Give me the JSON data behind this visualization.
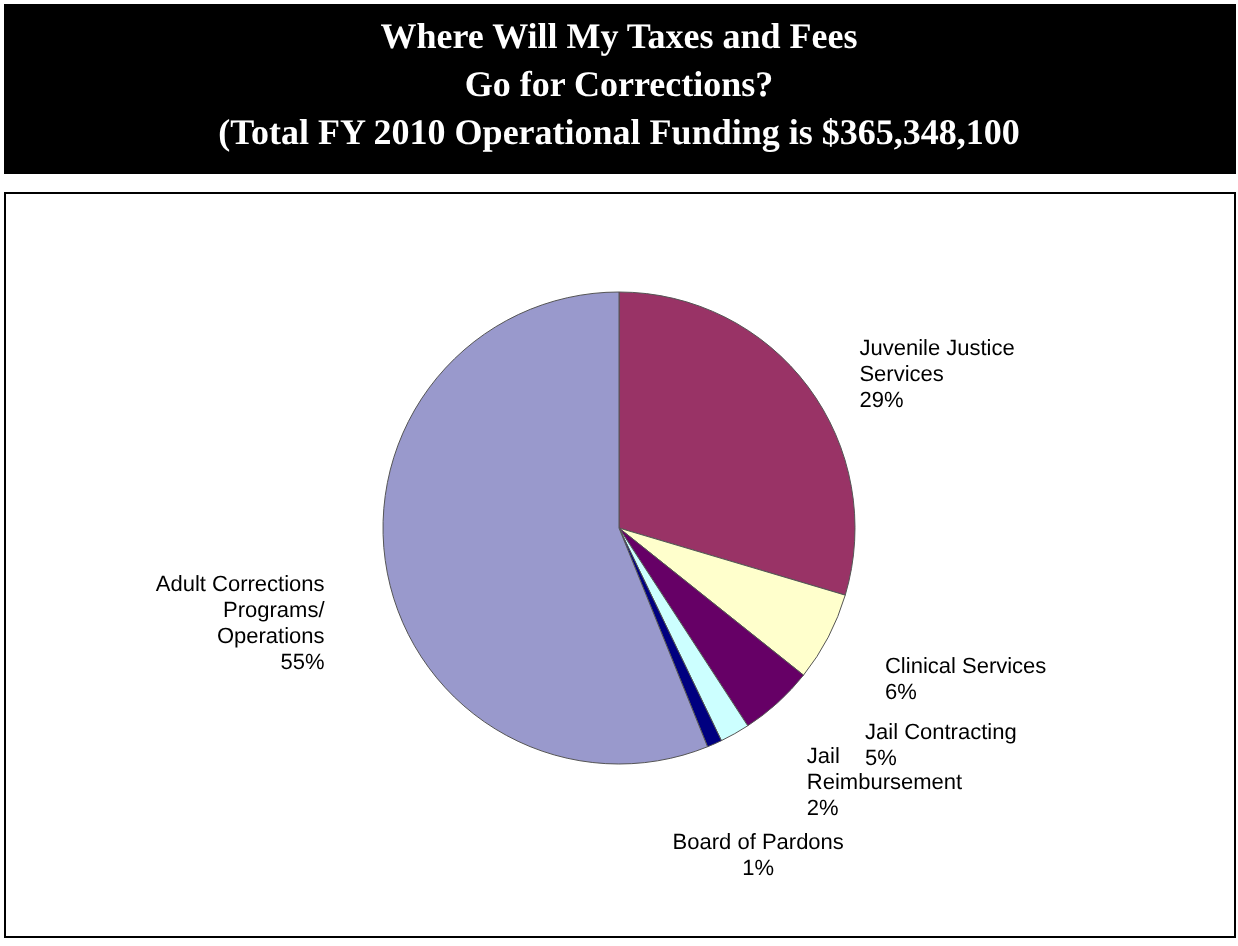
{
  "chart_data": {
    "type": "pie",
    "title": "Where Will My Taxes and Fees\nGo for Corrections?\n(Total FY 2010 Operational Funding is $365,348,100",
    "categories": [
      "Juvenile Justice\nServices",
      "Clinical Services",
      "Jail Contracting",
      "Jail\nReimbursement",
      "Board of Pardons",
      "Adult Corrections\nPrograms/\nOperations"
    ],
    "values": [
      29,
      6,
      5,
      2,
      1,
      55
    ],
    "value_labels": [
      "29%",
      "6%",
      "5%",
      "2%",
      "1%",
      "55%"
    ],
    "colors": [
      "#993366",
      "#ffffcc",
      "#660066",
      "#ccffff",
      "#000080",
      "#9999cc"
    ],
    "legend": false
  }
}
